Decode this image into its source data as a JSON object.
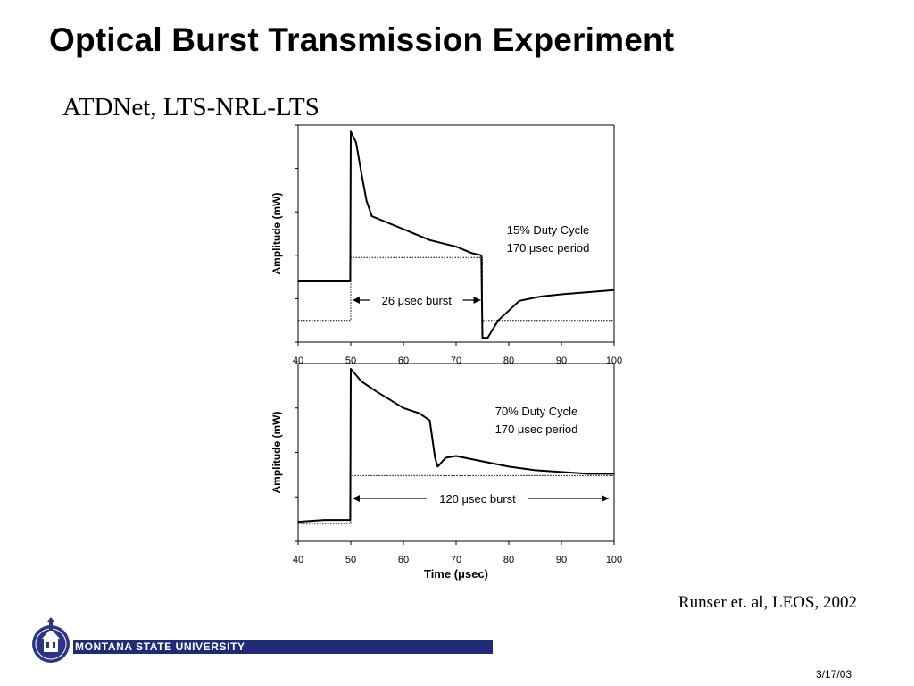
{
  "slide": {
    "title": "Optical Burst Transmission Experiment",
    "subtitle": "ATDNet, LTS-NRL-LTS",
    "citation": "Runser et. al, LEOS, 2002",
    "date": "3/17/03",
    "footer": {
      "university": "MONTANA STATE UNIVERSITY",
      "bar_color": "#1f2a78"
    }
  },
  "chart_data": [
    {
      "type": "line",
      "ylabel": "Amplitude (mW)",
      "xlabel": "",
      "xlim": [
        40,
        100
      ],
      "xticks": [
        "40",
        "50",
        "60",
        "70",
        "80",
        "90",
        "100"
      ],
      "ylim": [
        0,
        1
      ],
      "ytick_labels_shown": false,
      "annotations": [
        "15% Duty Cycle",
        "170 μsec period",
        "26 μsec burst"
      ],
      "burst_window": [
        50,
        75
      ],
      "series": [
        {
          "points": [
            [
              40,
              0.28
            ],
            [
              45,
              0.28
            ],
            [
              49.9,
              0.28
            ],
            [
              50,
              0.97
            ],
            [
              51,
              0.92
            ],
            [
              52,
              0.78
            ],
            [
              53,
              0.65
            ],
            [
              54,
              0.58
            ],
            [
              55,
              0.57
            ],
            [
              57,
              0.55
            ],
            [
              60,
              0.52
            ],
            [
              65,
              0.47
            ],
            [
              70,
              0.44
            ],
            [
              73,
              0.41
            ],
            [
              74.8,
              0.4
            ],
            [
              75,
              0.02
            ],
            [
              76,
              0.02
            ],
            [
              78,
              0.1
            ],
            [
              82,
              0.19
            ],
            [
              86,
              0.21
            ],
            [
              90,
              0.22
            ],
            [
              95,
              0.23
            ],
            [
              100,
              0.24
            ]
          ]
        },
        {
          "style": "dotted",
          "points": [
            [
              40,
              0.1
            ],
            [
              50,
              0.1
            ],
            [
              50,
              0.39
            ],
            [
              75,
              0.39
            ],
            [
              75,
              0.1
            ],
            [
              100,
              0.1
            ]
          ]
        }
      ]
    },
    {
      "type": "line",
      "ylabel": "Amplitude (mW)",
      "xlabel": "Time (μsec)",
      "xlim": [
        40,
        100
      ],
      "xticks": [
        "40",
        "50",
        "60",
        "70",
        "80",
        "90",
        "100"
      ],
      "ylim": [
        0,
        1
      ],
      "ytick_labels_shown": false,
      "annotations": [
        "70% Duty Cycle",
        "170 μsec period",
        "120 μsec burst"
      ],
      "series": [
        {
          "points": [
            [
              40,
              0.11
            ],
            [
              45,
              0.12
            ],
            [
              49.9,
              0.12
            ],
            [
              50,
              0.97
            ],
            [
              52,
              0.9
            ],
            [
              55,
              0.84
            ],
            [
              60,
              0.75
            ],
            [
              63,
              0.72
            ],
            [
              65,
              0.68
            ],
            [
              66,
              0.47
            ],
            [
              66.5,
              0.42
            ],
            [
              68,
              0.47
            ],
            [
              70,
              0.48
            ],
            [
              75,
              0.45
            ],
            [
              80,
              0.42
            ],
            [
              85,
              0.4
            ],
            [
              90,
              0.39
            ],
            [
              95,
              0.38
            ],
            [
              100,
              0.38
            ]
          ]
        },
        {
          "style": "dotted",
          "points": [
            [
              40,
              0.1
            ],
            [
              50,
              0.1
            ],
            [
              50,
              0.37
            ],
            [
              100,
              0.37
            ]
          ]
        }
      ]
    }
  ]
}
